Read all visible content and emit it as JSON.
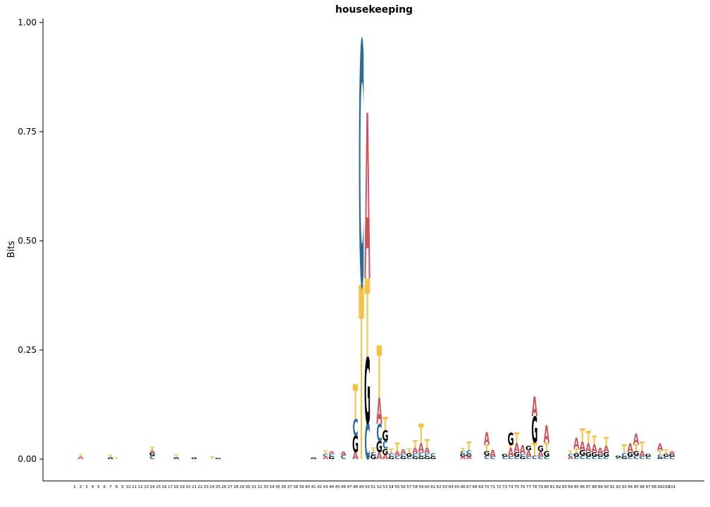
{
  "chart_data": {
    "type": "sequence-logo",
    "title": "housekeeping",
    "ylabel": "Bits",
    "xlabel": "",
    "ylim": [
      0,
      1
    ],
    "yticks": [
      "0.00",
      "0.25",
      "0.50",
      "0.75",
      "1.00"
    ],
    "ytick_values": [
      0,
      0.25,
      0.5,
      0.75,
      1.0
    ],
    "positions": 101,
    "colors": {
      "A": "#d1515a",
      "C": "#2a6b9b",
      "G": "#000000",
      "T": "#f7c244"
    },
    "columns": [
      {
        "pos": 2,
        "stack": [
          [
            "A",
            0.006
          ],
          [
            "T",
            0.005
          ]
        ]
      },
      {
        "pos": 7,
        "stack": [
          [
            "G",
            0.004
          ],
          [
            "T",
            0.006
          ]
        ]
      },
      {
        "pos": 8,
        "stack": [
          [
            "T",
            0.004
          ]
        ]
      },
      {
        "pos": 14,
        "stack": [
          [
            "C",
            0.008
          ],
          [
            "G",
            0.006
          ],
          [
            "A",
            0.006
          ],
          [
            "T",
            0.008
          ]
        ]
      },
      {
        "pos": 18,
        "stack": [
          [
            "G",
            0.004
          ],
          [
            "T",
            0.006
          ]
        ]
      },
      {
        "pos": 21,
        "stack": [
          [
            "G",
            0.004
          ]
        ]
      },
      {
        "pos": 24,
        "stack": [
          [
            "T",
            0.006
          ]
        ]
      },
      {
        "pos": 25,
        "stack": [
          [
            "G",
            0.003
          ]
        ]
      },
      {
        "pos": 41,
        "stack": [
          [
            "G",
            0.004
          ]
        ]
      },
      {
        "pos": 43,
        "stack": [
          [
            "A",
            0.006
          ],
          [
            "C",
            0.006
          ],
          [
            "T",
            0.008
          ]
        ]
      },
      {
        "pos": 44,
        "stack": [
          [
            "G",
            0.006
          ],
          [
            "C",
            0.006
          ],
          [
            "A",
            0.006
          ]
        ]
      },
      {
        "pos": 46,
        "stack": [
          [
            "C",
            0.01
          ],
          [
            "A",
            0.008
          ]
        ]
      },
      {
        "pos": 48,
        "stack": [
          [
            "A",
            0.016
          ],
          [
            "G",
            0.038
          ],
          [
            "C",
            0.038
          ],
          [
            "T",
            0.08
          ]
        ]
      },
      {
        "pos": 49,
        "stack": [
          [
            "T",
            0.4
          ],
          [
            "C",
            0.558
          ]
        ]
      },
      {
        "pos": 50,
        "stack": [
          [
            "C",
            0.082
          ],
          [
            "G",
            0.152
          ],
          [
            "T",
            0.18
          ],
          [
            "A",
            0.38
          ]
        ]
      },
      {
        "pos": 51,
        "stack": [
          [
            "G",
            0.01
          ],
          [
            "C",
            0.006
          ],
          [
            "T",
            0.01
          ]
        ]
      },
      {
        "pos": 52,
        "stack": [
          [
            "A",
            0.016
          ],
          [
            "G",
            0.025
          ],
          [
            "C",
            0.04
          ],
          [
            "A",
            0.06
          ],
          [
            "T",
            0.12
          ]
        ]
      },
      {
        "pos": 53,
        "stack": [
          [
            "A",
            0.01
          ],
          [
            "G",
            0.014
          ],
          [
            "C",
            0.018
          ],
          [
            "G",
            0.024
          ],
          [
            "T",
            0.03
          ]
        ]
      },
      {
        "pos": 54,
        "stack": [
          [
            "G",
            0.006
          ],
          [
            "C",
            0.008
          ],
          [
            "T",
            0.01
          ]
        ]
      },
      {
        "pos": 55,
        "stack": [
          [
            "C",
            0.008
          ],
          [
            "A",
            0.01
          ],
          [
            "T",
            0.02
          ]
        ]
      },
      {
        "pos": 56,
        "stack": [
          [
            "G",
            0.006
          ],
          [
            "C",
            0.006
          ],
          [
            "A",
            0.01
          ]
        ]
      },
      {
        "pos": 57,
        "stack": [
          [
            "C",
            0.006
          ],
          [
            "G",
            0.008
          ],
          [
            "T",
            0.01
          ]
        ]
      },
      {
        "pos": 58,
        "stack": [
          [
            "G",
            0.006
          ],
          [
            "C",
            0.008
          ],
          [
            "A",
            0.012
          ],
          [
            "T",
            0.018
          ]
        ]
      },
      {
        "pos": 59,
        "stack": [
          [
            "G",
            0.006
          ],
          [
            "C",
            0.01
          ],
          [
            "A",
            0.02
          ],
          [
            "T",
            0.045
          ]
        ]
      },
      {
        "pos": 60,
        "stack": [
          [
            "G",
            0.006
          ],
          [
            "C",
            0.008
          ],
          [
            "A",
            0.012
          ],
          [
            "T",
            0.02
          ]
        ]
      },
      {
        "pos": 61,
        "stack": [
          [
            "G",
            0.006
          ],
          [
            "C",
            0.008
          ]
        ]
      },
      {
        "pos": 66,
        "stack": [
          [
            "A",
            0.006
          ],
          [
            "G",
            0.006
          ],
          [
            "C",
            0.006
          ],
          [
            "T",
            0.008
          ]
        ]
      },
      {
        "pos": 67,
        "stack": [
          [
            "A",
            0.006
          ],
          [
            "G",
            0.006
          ],
          [
            "C",
            0.008
          ],
          [
            "T",
            0.02
          ]
        ]
      },
      {
        "pos": 70,
        "stack": [
          [
            "C",
            0.008
          ],
          [
            "G",
            0.01
          ],
          [
            "T",
            0.016
          ],
          [
            "A",
            0.028
          ]
        ]
      },
      {
        "pos": 71,
        "stack": [
          [
            "C",
            0.006
          ],
          [
            "A",
            0.016
          ]
        ]
      },
      {
        "pos": 73,
        "stack": [
          [
            "C",
            0.006
          ],
          [
            "G",
            0.006
          ]
        ]
      },
      {
        "pos": 74,
        "stack": [
          [
            "C",
            0.006
          ],
          [
            "A",
            0.02
          ],
          [
            "T",
            0.006
          ],
          [
            "G",
            0.028
          ]
        ]
      },
      {
        "pos": 75,
        "stack": [
          [
            "C",
            0.006
          ],
          [
            "G",
            0.01
          ],
          [
            "A",
            0.02
          ],
          [
            "T",
            0.025
          ]
        ]
      },
      {
        "pos": 76,
        "stack": [
          [
            "G",
            0.006
          ],
          [
            "C",
            0.006
          ],
          [
            "A",
            0.02
          ]
        ]
      },
      {
        "pos": 77,
        "stack": [
          [
            "C",
            0.006
          ],
          [
            "A",
            0.014
          ],
          [
            "G",
            0.01
          ]
        ]
      },
      {
        "pos": 78,
        "stack": [
          [
            "C",
            0.008
          ],
          [
            "T",
            0.03
          ],
          [
            "G",
            0.06
          ],
          [
            "A",
            0.045
          ]
        ]
      },
      {
        "pos": 79,
        "stack": [
          [
            "C",
            0.006
          ],
          [
            "A",
            0.012
          ],
          [
            "G",
            0.012
          ]
        ]
      },
      {
        "pos": 80,
        "stack": [
          [
            "C",
            0.006
          ],
          [
            "G",
            0.012
          ],
          [
            "T",
            0.02
          ],
          [
            "A",
            0.04
          ]
        ]
      },
      {
        "pos": 84,
        "stack": [
          [
            "A",
            0.006
          ],
          [
            "C",
            0.006
          ],
          [
            "T",
            0.008
          ]
        ]
      },
      {
        "pos": 85,
        "stack": [
          [
            "C",
            0.006
          ],
          [
            "G",
            0.008
          ],
          [
            "T",
            0.01
          ],
          [
            "A",
            0.025
          ]
        ]
      },
      {
        "pos": 86,
        "stack": [
          [
            "C",
            0.008
          ],
          [
            "G",
            0.012
          ],
          [
            "A",
            0.02
          ],
          [
            "T",
            0.03
          ]
        ]
      },
      {
        "pos": 87,
        "stack": [
          [
            "C",
            0.006
          ],
          [
            "G",
            0.01
          ],
          [
            "A",
            0.02
          ],
          [
            "T",
            0.028
          ]
        ]
      },
      {
        "pos": 88,
        "stack": [
          [
            "C",
            0.006
          ],
          [
            "G",
            0.01
          ],
          [
            "A",
            0.018
          ],
          [
            "T",
            0.02
          ]
        ]
      },
      {
        "pos": 89,
        "stack": [
          [
            "C",
            0.006
          ],
          [
            "G",
            0.006
          ],
          [
            "A",
            0.014
          ]
        ]
      },
      {
        "pos": 90,
        "stack": [
          [
            "C",
            0.006
          ],
          [
            "G",
            0.01
          ],
          [
            "A",
            0.015
          ],
          [
            "T",
            0.02
          ]
        ]
      },
      {
        "pos": 92,
        "stack": [
          [
            "C",
            0.004
          ],
          [
            "G",
            0.004
          ]
        ]
      },
      {
        "pos": 93,
        "stack": [
          [
            "G",
            0.006
          ],
          [
            "C",
            0.008
          ],
          [
            "T",
            0.02
          ]
        ]
      },
      {
        "pos": 94,
        "stack": [
          [
            "C",
            0.006
          ],
          [
            "G",
            0.01
          ],
          [
            "A",
            0.02
          ]
        ]
      },
      {
        "pos": 95,
        "stack": [
          [
            "C",
            0.008
          ],
          [
            "G",
            0.01
          ],
          [
            "T",
            0.016
          ],
          [
            "A",
            0.025
          ]
        ]
      },
      {
        "pos": 96,
        "stack": [
          [
            "C",
            0.006
          ],
          [
            "A",
            0.014
          ],
          [
            "T",
            0.02
          ]
        ]
      },
      {
        "pos": 97,
        "stack": [
          [
            "C",
            0.006
          ],
          [
            "G",
            0.006
          ]
        ]
      },
      {
        "pos": 99,
        "stack": [
          [
            "G",
            0.004
          ],
          [
            "C",
            0.006
          ],
          [
            "T",
            0.01
          ],
          [
            "A",
            0.016
          ]
        ]
      },
      {
        "pos": 100,
        "stack": [
          [
            "C",
            0.006
          ],
          [
            "G",
            0.006
          ],
          [
            "T",
            0.01
          ]
        ]
      },
      {
        "pos": 101,
        "stack": [
          [
            "C",
            0.006
          ],
          [
            "G",
            0.006
          ],
          [
            "A",
            0.006
          ]
        ]
      }
    ]
  }
}
